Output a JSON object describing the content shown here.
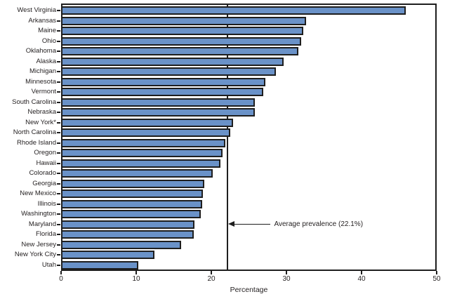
{
  "chart_data": {
    "type": "bar",
    "orientation": "horizontal",
    "title": "",
    "xlabel": "Percentage",
    "ylabel": "",
    "xlim": [
      0,
      50
    ],
    "xticks": [
      0,
      10,
      20,
      30,
      40,
      50
    ],
    "grid": false,
    "legend": "none",
    "categories": [
      "West Virginia",
      "Arkansas",
      "Maine",
      "Ohio",
      "Oklahoma",
      "Alaska",
      "Michigan",
      "Minnesota",
      "Vermont",
      "South Carolina",
      "Nebraska",
      "New York*",
      "North Carolina",
      "Rhode Island",
      "Oregon",
      "Hawaii",
      "Colorado",
      "Georgia",
      "New Mexico",
      "Illinois",
      "Washington",
      "Maryland",
      "Florida",
      "New Jersey",
      "New York City",
      "Utah"
    ],
    "values": [
      45.9,
      32.6,
      32.2,
      32.0,
      31.6,
      29.6,
      28.6,
      27.2,
      26.9,
      25.8,
      25.8,
      22.9,
      22.5,
      21.9,
      21.5,
      21.2,
      20.2,
      19.1,
      18.9,
      18.8,
      18.6,
      17.8,
      17.7,
      16.0,
      12.4,
      10.3
    ],
    "average_line": {
      "value": 22.1,
      "label": "Average prevalence (22.1%)"
    },
    "colors": {
      "bar_fill": "#6a92c8",
      "bar_border": "#1e1e1e",
      "axis": "#1e1e1e",
      "text": "#231f20",
      "background": "#ffffff"
    }
  }
}
